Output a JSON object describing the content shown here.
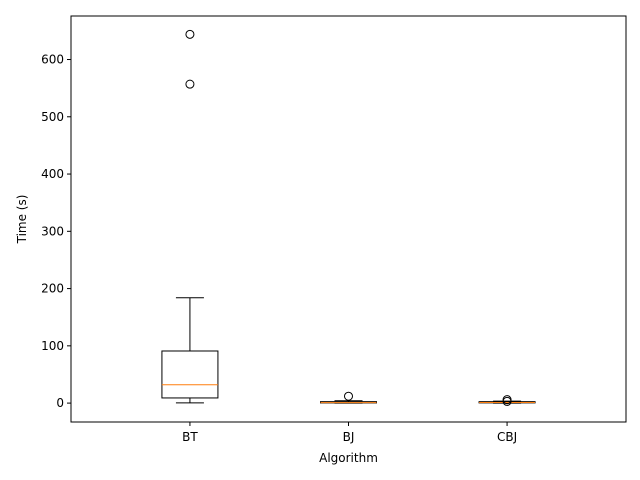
{
  "chart_data": {
    "type": "box",
    "title": "",
    "xlabel": "Algorithm",
    "ylabel": "Time (s)",
    "ylim": [
      -33,
      676
    ],
    "yticks": [
      0,
      100,
      200,
      300,
      400,
      500,
      600
    ],
    "grid": false,
    "categories": [
      "BT",
      "BJ",
      "CBJ"
    ],
    "boxes": [
      {
        "category": "BT",
        "whisker_low": 0.3,
        "q1": 9,
        "median": 32,
        "q3": 91,
        "whisker_high": 184,
        "outliers": [
          644,
          557
        ]
      },
      {
        "category": "BJ",
        "whisker_low": 0,
        "q1": 0.3,
        "median": 0.8,
        "q3": 2.5,
        "whisker_high": 4,
        "outliers": [
          12
        ]
      },
      {
        "category": "CBJ",
        "whisker_low": 0,
        "q1": 0.4,
        "median": 1,
        "q3": 2.5,
        "whisker_high": 3.5,
        "outliers": [
          6,
          3
        ]
      }
    ],
    "colors": {
      "box": "#000000",
      "median": "#ff7f0e"
    }
  }
}
